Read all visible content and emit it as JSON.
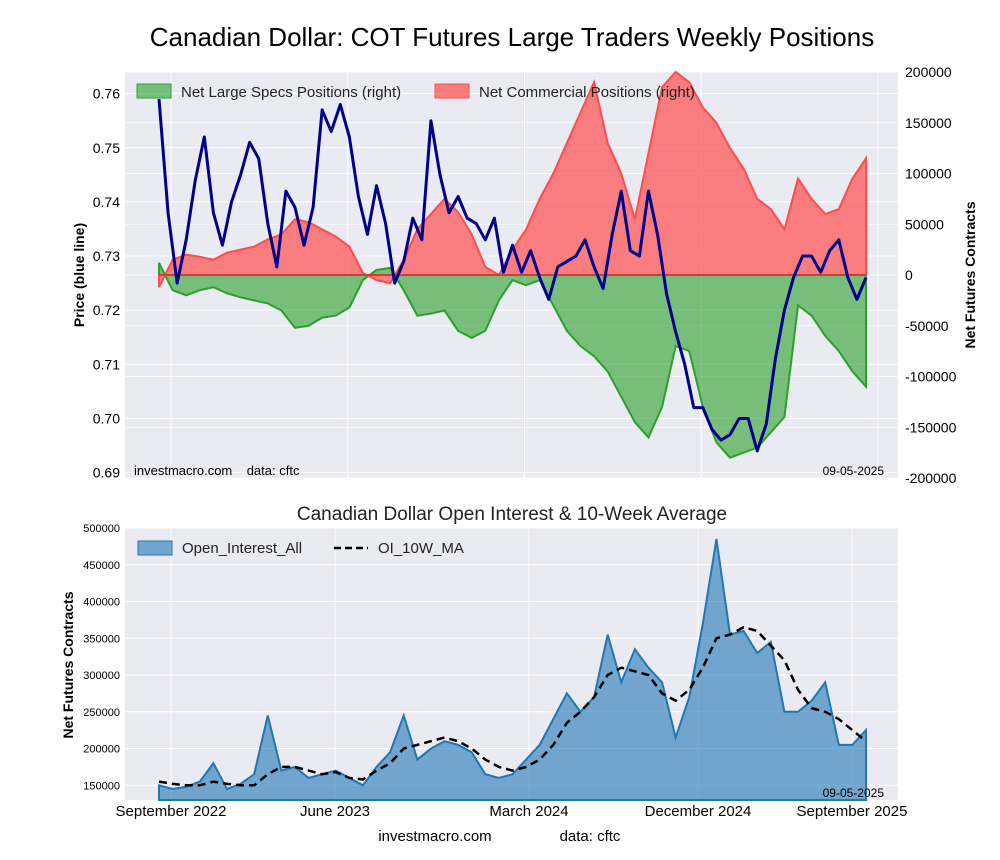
{
  "figure": {
    "title": "Canadian Dollar: COT Futures Large Traders Weekly Positions",
    "footer_left": "investmacro.com",
    "footer_right": "data: cftc"
  },
  "chart_data": [
    {
      "type": "line",
      "subtype": "price line with net positions area (dual axis)",
      "ylabel_left": "Price (blue line)",
      "ylabel_right": "Net Futures Contracts",
      "ylim_left": [
        0.689,
        0.764
      ],
      "ylim_right": [
        -200000,
        200000
      ],
      "yticks_left": [
        "0.69",
        "0.70",
        "0.71",
        "0.72",
        "0.73",
        "0.74",
        "0.75",
        "0.76"
      ],
      "yticks_right": [
        "200000",
        "150000",
        "100000",
        "50000",
        "0",
        "-50000",
        "-100000",
        "-150000",
        "-200000"
      ],
      "watermark_left": "investmacro.com    data: cftc",
      "date_label": "09-05-2025",
      "grid": true,
      "legend_position": "top-left",
      "series": [
        {
          "name": "Net Large Specs Positions (right)",
          "style": "area",
          "axis": "right",
          "color": "#2ca02c",
          "x": [
            0,
            3,
            6,
            9,
            12,
            15,
            18,
            21,
            24,
            27,
            30,
            33,
            36,
            39,
            42,
            45,
            48,
            51,
            54,
            57,
            60,
            63,
            66,
            69,
            72,
            75,
            78,
            81,
            84,
            87,
            90,
            93,
            96,
            99,
            102,
            105,
            108,
            111,
            114,
            117,
            120,
            123,
            126,
            129,
            132,
            135,
            138,
            141,
            144,
            147,
            150,
            153,
            156
          ],
          "values": [
            12000,
            -15000,
            -20000,
            -15000,
            -12000,
            -18000,
            -22000,
            -25000,
            -28000,
            -35000,
            -52000,
            -50000,
            -42000,
            -40000,
            -32000,
            -5000,
            5000,
            7000,
            -15000,
            -40000,
            -38000,
            -35000,
            -55000,
            -62000,
            -55000,
            -25000,
            -5000,
            -10000,
            -5000,
            -30000,
            -55000,
            -70000,
            -80000,
            -95000,
            -120000,
            -145000,
            -160000,
            -130000,
            -70000,
            -75000,
            -130000,
            -165000,
            -180000,
            -175000,
            -170000,
            -155000,
            -140000,
            -30000,
            -40000,
            -60000,
            -75000,
            -95000,
            -110000
          ]
        },
        {
          "name": "Net Commercial Positions (right)",
          "style": "area",
          "axis": "right",
          "color": "#ff4d4d",
          "x": [
            0,
            3,
            6,
            9,
            12,
            15,
            18,
            21,
            24,
            27,
            30,
            33,
            36,
            39,
            42,
            45,
            48,
            51,
            54,
            57,
            60,
            63,
            66,
            69,
            72,
            75,
            78,
            81,
            84,
            87,
            90,
            93,
            96,
            99,
            102,
            105,
            108,
            111,
            114,
            117,
            120,
            123,
            126,
            129,
            132,
            135,
            138,
            141,
            144,
            147,
            150,
            153,
            156
          ],
          "values": [
            -12000,
            15000,
            20000,
            18000,
            15000,
            22000,
            25000,
            28000,
            35000,
            40000,
            55000,
            52000,
            45000,
            38000,
            28000,
            2000,
            -5000,
            -8000,
            15000,
            45000,
            60000,
            75000,
            62000,
            40000,
            8000,
            0,
            25000,
            45000,
            75000,
            100000,
            130000,
            160000,
            190000,
            130000,
            100000,
            55000,
            120000,
            185000,
            200000,
            190000,
            165000,
            150000,
            125000,
            105000,
            75000,
            65000,
            45000,
            95000,
            75000,
            60000,
            65000,
            95000,
            115000
          ]
        },
        {
          "name": "Price",
          "style": "line",
          "axis": "left",
          "color": "#00008b",
          "x": [
            0,
            2,
            4,
            6,
            8,
            10,
            12,
            14,
            16,
            18,
            20,
            22,
            24,
            26,
            28,
            30,
            32,
            34,
            36,
            38,
            40,
            42,
            44,
            46,
            48,
            50,
            52,
            54,
            56,
            58,
            60,
            62,
            64,
            66,
            68,
            70,
            72,
            74,
            76,
            78,
            80,
            82,
            84,
            86,
            88,
            90,
            92,
            94,
            96,
            98,
            100,
            102,
            104,
            106,
            108,
            110,
            112,
            114,
            116,
            118,
            120,
            122,
            124,
            126,
            128,
            130,
            132,
            134,
            136,
            138,
            140,
            142,
            144,
            146,
            148,
            150,
            152,
            154,
            156
          ],
          "values": [
            0.759,
            0.738,
            0.725,
            0.733,
            0.744,
            0.752,
            0.738,
            0.732,
            0.74,
            0.745,
            0.751,
            0.748,
            0.736,
            0.728,
            0.742,
            0.739,
            0.732,
            0.739,
            0.757,
            0.753,
            0.758,
            0.752,
            0.741,
            0.734,
            0.743,
            0.736,
            0.725,
            0.729,
            0.737,
            0.733,
            0.755,
            0.745,
            0.738,
            0.741,
            0.737,
            0.736,
            0.733,
            0.737,
            0.727,
            0.732,
            0.727,
            0.731,
            0.726,
            0.722,
            0.728,
            0.729,
            0.73,
            0.733,
            0.728,
            0.724,
            0.734,
            0.742,
            0.731,
            0.73,
            0.742,
            0.734,
            0.723,
            0.716,
            0.71,
            0.702,
            0.702,
            0.698,
            0.696,
            0.697,
            0.7,
            0.7,
            0.694,
            0.699,
            0.711,
            0.72,
            0.726,
            0.73,
            0.73,
            0.727,
            0.731,
            0.733,
            0.726,
            0.722,
            0.726
          ]
        }
      ]
    },
    {
      "type": "area",
      "title": "Canadian Dollar Open Interest & 10-Week Average",
      "ylabel": "Net Futures Contracts",
      "ylim": [
        130000,
        500000
      ],
      "yticks": [
        "500000",
        "450000",
        "400000",
        "350000",
        "300000",
        "250000",
        "200000",
        "150000"
      ],
      "xticks": [
        "September 2022",
        "June 2023",
        "March 2024",
        "December 2024",
        "September 2025"
      ],
      "date_label": "09-05-2025",
      "grid": true,
      "legend_position": "top-left",
      "series": [
        {
          "name": "Open_Interest_All",
          "style": "area",
          "color": "#1f77b4",
          "x": [
            0,
            3,
            6,
            9,
            12,
            15,
            18,
            21,
            24,
            27,
            30,
            33,
            36,
            39,
            42,
            45,
            48,
            51,
            54,
            57,
            60,
            63,
            66,
            69,
            72,
            75,
            78,
            81,
            84,
            87,
            90,
            93,
            96,
            99,
            102,
            105,
            108,
            111,
            114,
            117,
            120,
            123,
            126,
            129,
            132,
            135,
            138,
            141,
            144,
            147,
            150,
            153,
            156
          ],
          "values": [
            150000,
            145000,
            148000,
            155000,
            180000,
            145000,
            152000,
            165000,
            245000,
            170000,
            175000,
            160000,
            165000,
            170000,
            160000,
            150000,
            175000,
            195000,
            245000,
            185000,
            200000,
            210000,
            205000,
            195000,
            165000,
            160000,
            165000,
            185000,
            205000,
            240000,
            275000,
            250000,
            270000,
            355000,
            290000,
            335000,
            310000,
            290000,
            215000,
            270000,
            370000,
            485000,
            355000,
            360000,
            330000,
            345000,
            250000,
            250000,
            265000,
            290000,
            205000,
            205000,
            225000
          ]
        },
        {
          "name": "OI_10W_MA",
          "style": "dashed-line",
          "color": "#000000",
          "x": [
            0,
            3,
            6,
            9,
            12,
            15,
            18,
            21,
            24,
            27,
            30,
            33,
            36,
            39,
            42,
            45,
            48,
            51,
            54,
            57,
            60,
            63,
            66,
            69,
            72,
            75,
            78,
            81,
            84,
            87,
            90,
            93,
            96,
            99,
            102,
            105,
            108,
            111,
            114,
            117,
            120,
            123,
            126,
            129,
            132,
            135,
            138,
            141,
            144,
            147,
            150,
            153,
            156
          ],
          "values": [
            155000,
            152000,
            150000,
            150000,
            155000,
            152000,
            150000,
            150000,
            165000,
            175000,
            175000,
            170000,
            165000,
            168000,
            160000,
            158000,
            170000,
            180000,
            200000,
            205000,
            210000,
            215000,
            210000,
            200000,
            185000,
            175000,
            170000,
            175000,
            185000,
            205000,
            235000,
            250000,
            270000,
            300000,
            310000,
            305000,
            300000,
            275000,
            265000,
            280000,
            310000,
            350000,
            355000,
            365000,
            360000,
            340000,
            320000,
            280000,
            255000,
            250000,
            240000,
            225000,
            210000
          ]
        }
      ]
    }
  ]
}
